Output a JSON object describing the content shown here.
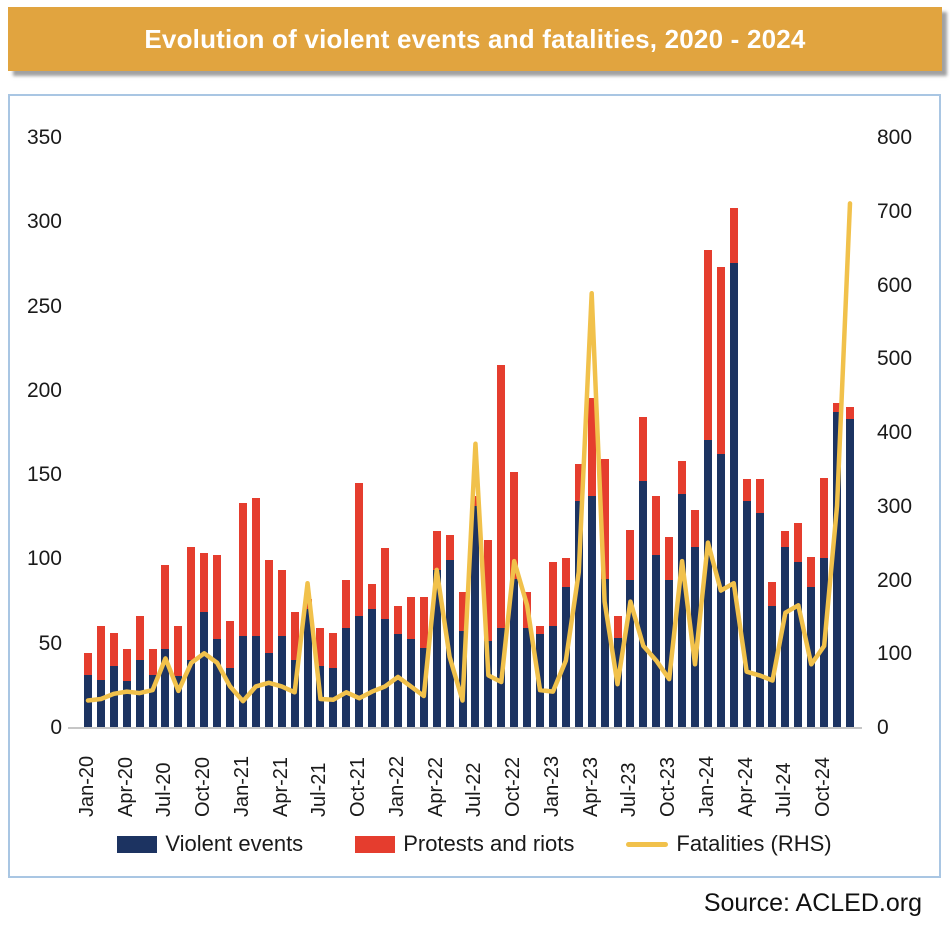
{
  "title": {
    "text": "Evolution of violent events and fatalities, 2020 - 2024"
  },
  "source": {
    "text": "Source: ACLED.org"
  },
  "colors": {
    "title_bg": "#E1A43F",
    "violent_events": "#1C3361",
    "protests_riots": "#E53D2E",
    "fatalities_line": "#F1C14B",
    "box_border": "#A9C6E3",
    "axis_text": "#1a1a1a"
  },
  "legend": {
    "items": [
      {
        "label": "Violent events",
        "color": "#1C3361",
        "type": "bar"
      },
      {
        "label": "Protests and riots",
        "color": "#E53D2E",
        "type": "bar"
      },
      {
        "label": "Fatalities (RHS)",
        "color": "#F1C14B",
        "type": "line"
      }
    ]
  },
  "chart_data": {
    "type": "bar",
    "subtype": "stacked-bars-with-line-on-secondary-axis",
    "title": "Evolution of violent events and fatalities, 2020 - 2024",
    "xlabel": "",
    "ylabel_left": "",
    "ylabel_right": "",
    "grid": false,
    "legend_position": "bottom",
    "left_axis": {
      "min": 0,
      "max": 350,
      "step": 50,
      "ticks": [
        350,
        300,
        250,
        200,
        150,
        100,
        50,
        0
      ]
    },
    "right_axis": {
      "min": 0,
      "max": 800,
      "step": 100,
      "ticks": [
        800,
        700,
        600,
        500,
        400,
        300,
        200,
        100,
        0
      ]
    },
    "x_tick_labels_shown": [
      "Jan-20",
      "Apr-20",
      "Jul-20",
      "Oct-20",
      "Jan-21",
      "Apr-21",
      "Jul-21",
      "Oct-21",
      "Jan-22",
      "Apr-22",
      "Jul-22",
      "Oct-22",
      "Jan-23",
      "Apr-23",
      "Jul-23",
      "Oct-23",
      "Jan-24",
      "Apr-24",
      "Jul-24",
      "Oct-24"
    ],
    "categories": [
      "Jan-20",
      "Feb-20",
      "Mar-20",
      "Apr-20",
      "May-20",
      "Jun-20",
      "Jul-20",
      "Aug-20",
      "Sep-20",
      "Oct-20",
      "Nov-20",
      "Dec-20",
      "Jan-21",
      "Feb-21",
      "Mar-21",
      "Apr-21",
      "May-21",
      "Jun-21",
      "Jul-21",
      "Aug-21",
      "Sep-21",
      "Oct-21",
      "Nov-21",
      "Dec-21",
      "Jan-22",
      "Feb-22",
      "Mar-22",
      "Apr-22",
      "May-22",
      "Jun-22",
      "Jul-22",
      "Aug-22",
      "Sep-22",
      "Oct-22",
      "Nov-22",
      "Dec-22",
      "Jan-23",
      "Feb-23",
      "Mar-23",
      "Apr-23",
      "May-23",
      "Jun-23",
      "Jul-23",
      "Aug-23",
      "Sep-23",
      "Oct-23",
      "Nov-23",
      "Dec-23",
      "Jan-24",
      "Feb-24",
      "Mar-24",
      "Apr-24",
      "May-24",
      "Jun-24",
      "Jul-24",
      "Aug-24",
      "Sep-24",
      "Oct-24",
      "Nov-24",
      "Dec-24"
    ],
    "series": [
      {
        "name": "Violent events",
        "type": "bar",
        "stack": "events",
        "axis": "left",
        "color": "#1C3361",
        "values": [
          31,
          28,
          36,
          27,
          40,
          31,
          46,
          30,
          40,
          68,
          52,
          35,
          54,
          54,
          44,
          54,
          40,
          70,
          36,
          35,
          59,
          66,
          70,
          64,
          55,
          52,
          47,
          93,
          99,
          57,
          131,
          51,
          59,
          88,
          59,
          55,
          60,
          83,
          134,
          137,
          88,
          53,
          87,
          146,
          102,
          87,
          138,
          107,
          170,
          162,
          275,
          134,
          127,
          72,
          107,
          98,
          83,
          100,
          187,
          183
        ]
      },
      {
        "name": "Protests and riots",
        "type": "bar",
        "stack": "events",
        "axis": "left",
        "color": "#E53D2E",
        "values": [
          13,
          32,
          20,
          19,
          26,
          15,
          50,
          30,
          67,
          35,
          50,
          28,
          79,
          82,
          55,
          39,
          28,
          6,
          23,
          21,
          28,
          79,
          15,
          42,
          17,
          25,
          30,
          23,
          15,
          23,
          6,
          60,
          156,
          63,
          21,
          5,
          38,
          17,
          22,
          58,
          71,
          13,
          30,
          38,
          35,
          26,
          20,
          22,
          113,
          111,
          33,
          13,
          20,
          14,
          9,
          23,
          18,
          48,
          5,
          7
        ]
      },
      {
        "name": "Fatalities (RHS)",
        "type": "line",
        "axis": "right",
        "color": "#F1C14B",
        "values": [
          36,
          38,
          45,
          48,
          46,
          50,
          93,
          49,
          87,
          100,
          87,
          55,
          35,
          55,
          60,
          55,
          47,
          195,
          38,
          37,
          47,
          39,
          48,
          55,
          68,
          55,
          42,
          213,
          95,
          36,
          384,
          70,
          61,
          225,
          165,
          50,
          48,
          90,
          210,
          588,
          170,
          58,
          170,
          110,
          90,
          65,
          225,
          85,
          250,
          185,
          195,
          75,
          70,
          63,
          155,
          165,
          85,
          110,
          300,
          710
        ]
      }
    ]
  }
}
